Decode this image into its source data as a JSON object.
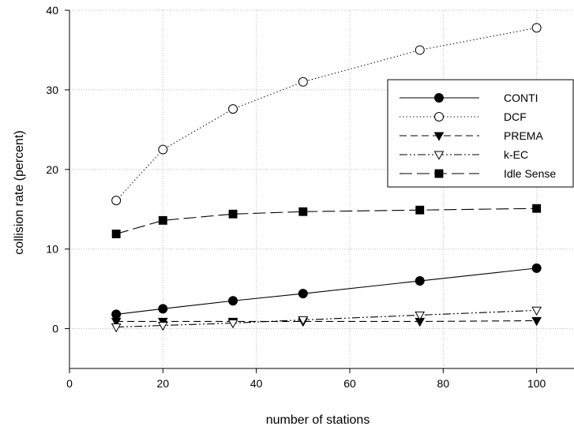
{
  "chart_data": {
    "type": "line",
    "title": "",
    "xlabel": "number of stations",
    "ylabel": "collision rate (percent)",
    "xlim": [
      0,
      108
    ],
    "ylim": [
      -5,
      40
    ],
    "xticks": [
      0,
      20,
      40,
      60,
      80,
      100
    ],
    "yticks": [
      0,
      10,
      20,
      30,
      40
    ],
    "grid": true,
    "legend_position": "top-right",
    "x": [
      10,
      20,
      35,
      50,
      75,
      100
    ],
    "series": [
      {
        "name": "CONTI",
        "values": [
          1.8,
          2.5,
          3.5,
          4.4,
          6.0,
          7.6
        ],
        "marker": "filled-circle",
        "line_style": "solid",
        "color": "#000000"
      },
      {
        "name": "DCF",
        "values": [
          16.1,
          22.5,
          27.6,
          31.0,
          35.0,
          37.8
        ],
        "marker": "open-circle",
        "line_style": "dotted",
        "color": "#000000"
      },
      {
        "name": "PREMA",
        "values": [
          0.9,
          0.9,
          0.9,
          0.9,
          0.9,
          1.0
        ],
        "marker": "filled-triangle-down",
        "line_style": "dashed",
        "color": "#000000"
      },
      {
        "name": "k-EC",
        "values": [
          0.2,
          0.4,
          0.7,
          1.1,
          1.7,
          2.3
        ],
        "marker": "open-triangle-down",
        "line_style": "dash-dot-dot",
        "color": "#000000"
      },
      {
        "name": "Idle Sense",
        "values": [
          11.9,
          13.6,
          14.4,
          14.7,
          14.9,
          15.1
        ],
        "marker": "filled-square",
        "line_style": "long-dash",
        "color": "#000000"
      }
    ]
  }
}
